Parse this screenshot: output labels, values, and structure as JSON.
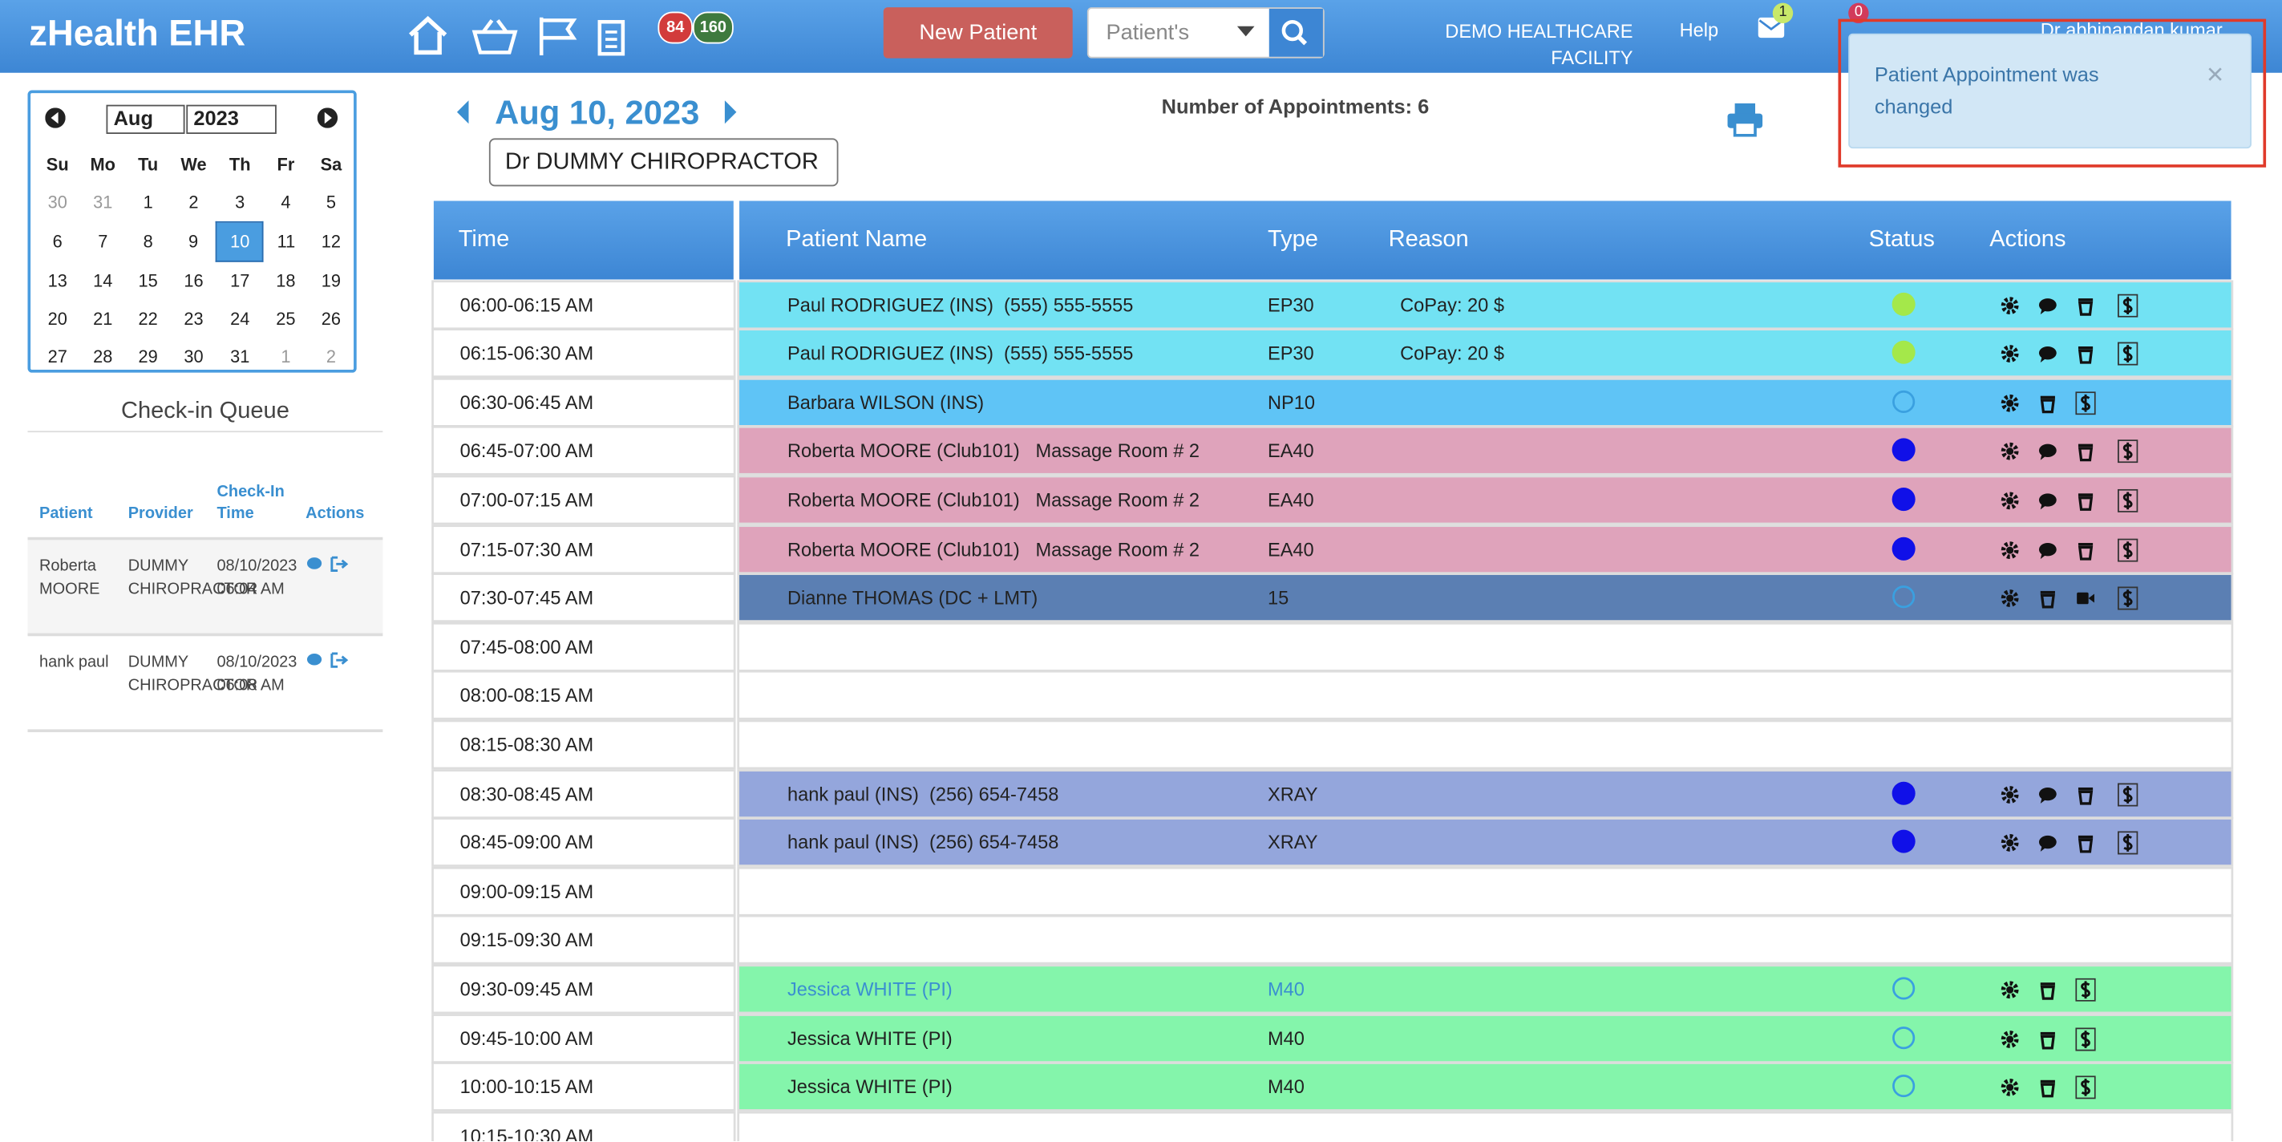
{
  "header": {
    "brand": "zHealth EHR",
    "badge_red": "84",
    "badge_green": "160",
    "new_patient": "New Patient",
    "search_placeholder": "Patient's",
    "facility": "DEMO HEALTHCARE FACILITY",
    "help": "Help",
    "mail_count": "1",
    "alert_count": "0",
    "user": "Dr abhinandan kumar"
  },
  "calendar": {
    "month": "Aug",
    "year": "2023",
    "selected": 10,
    "weekdays": [
      "Su",
      "Mo",
      "Tu",
      "We",
      "Th",
      "Fr",
      "Sa"
    ],
    "weeks": [
      [
        30,
        31,
        1,
        2,
        3,
        4,
        5
      ],
      [
        6,
        7,
        8,
        9,
        10,
        11,
        12
      ],
      [
        13,
        14,
        15,
        16,
        17,
        18,
        19
      ],
      [
        20,
        21,
        22,
        23,
        24,
        25,
        26
      ],
      [
        27,
        28,
        29,
        30,
        31,
        1,
        2
      ]
    ]
  },
  "checkin": {
    "title": "Check-in Queue",
    "columns": [
      "Patient",
      "Provider",
      "Check-In Time",
      "Actions"
    ],
    "rows": [
      [
        "Roberta MOORE",
        "DUMMY CHIROPRACTOR",
        "08/10/2023 06:04 AM"
      ],
      [
        "hank paul",
        "DUMMY CHIROPRACTOR",
        "08/10/2023 06:08 AM"
      ]
    ]
  },
  "schedule": {
    "date": "Aug 10, 2023",
    "provider": "Dr DUMMY CHIROPRACTOR",
    "count_label": "Number of Appointments: 6",
    "columns": [
      "Time",
      "Patient Name",
      "Type",
      "Reason",
      "Status",
      "Actions"
    ],
    "rows": [
      {
        "time": "06:00-06:15 AM",
        "patient": "Paul RODRIGUEZ (INS)  (555) 555-5555",
        "type": "EP30",
        "reason": "CoPay: 20 $",
        "status": "#a4e84a",
        "status_filled": true,
        "color": "#72e2f3",
        "actions": [
          "gear",
          "chat",
          "trash",
          "dollar"
        ]
      },
      {
        "time": "06:15-06:30 AM",
        "patient": "Paul RODRIGUEZ (INS)  (555) 555-5555",
        "type": "EP30",
        "reason": "CoPay: 20 $",
        "status": "#a4e84a",
        "status_filled": true,
        "color": "#72e2f3",
        "actions": [
          "gear",
          "chat",
          "trash",
          "dollar"
        ]
      },
      {
        "time": "06:30-06:45 AM",
        "patient": "Barbara WILSON (INS)",
        "type": "NP10",
        "status": "#3aa0e0",
        "status_filled": false,
        "color": "#5fc4f6",
        "actions": [
          "gear",
          "trash",
          "dollar"
        ]
      },
      {
        "time": "06:45-07:00 AM",
        "patient": "Roberta MOORE (Club101)   Massage Room # 2",
        "type": "EA40",
        "status": "#1010e8",
        "status_filled": true,
        "color": "#dfa3bb",
        "actions": [
          "gear",
          "chat",
          "trash",
          "dollar"
        ]
      },
      {
        "time": "07:00-07:15 AM",
        "patient": "Roberta MOORE (Club101)   Massage Room # 2",
        "type": "EA40",
        "status": "#1010e8",
        "status_filled": true,
        "color": "#dfa3bb",
        "actions": [
          "gear",
          "chat",
          "trash",
          "dollar"
        ]
      },
      {
        "time": "07:15-07:30 AM",
        "patient": "Roberta MOORE (Club101)   Massage Room # 2",
        "type": "EA40",
        "status": "#1010e8",
        "status_filled": true,
        "color": "#dfa3bb",
        "actions": [
          "gear",
          "chat",
          "trash",
          "dollar"
        ]
      },
      {
        "time": "07:30-07:45 AM",
        "patient": "Dianne THOMAS (DC + LMT)",
        "type": "15",
        "status": "#3aa0e0",
        "status_filled": false,
        "color": "#5b7fb3",
        "actions": [
          "gear",
          "trash",
          "video",
          "dollar"
        ]
      },
      {
        "time": "07:45-08:00 AM"
      },
      {
        "time": "08:00-08:15 AM"
      },
      {
        "time": "08:15-08:30 AM"
      },
      {
        "time": "08:30-08:45 AM",
        "patient": "hank paul (INS)  (256) 654-7458",
        "type": "XRAY",
        "status": "#1010e8",
        "status_filled": true,
        "color": "#94a6dc",
        "actions": [
          "gear",
          "chat",
          "trash",
          "dollar"
        ]
      },
      {
        "time": "08:45-09:00 AM",
        "patient": "hank paul (INS)  (256) 654-7458",
        "type": "XRAY",
        "status": "#1010e8",
        "status_filled": true,
        "color": "#94a6dc",
        "actions": [
          "gear",
          "chat",
          "trash",
          "dollar"
        ]
      },
      {
        "time": "09:00-09:15 AM"
      },
      {
        "time": "09:15-09:30 AM"
      },
      {
        "time": "09:30-09:45 AM",
        "patient": "Jessica WHITE (PI)",
        "type": "M40",
        "status": "#3aa0e0",
        "status_filled": false,
        "color": "#84f5ab",
        "text_color": "#3a8fd0",
        "actions": [
          "gear",
          "trash",
          "dollar"
        ]
      },
      {
        "time": "09:45-10:00 AM",
        "patient": "Jessica WHITE (PI)",
        "type": "M40",
        "status": "#3aa0e0",
        "status_filled": false,
        "color": "#84f5ab",
        "actions": [
          "gear",
          "trash",
          "dollar"
        ]
      },
      {
        "time": "10:00-10:15 AM",
        "patient": "Jessica WHITE (PI)",
        "type": "M40",
        "status": "#3aa0e0",
        "status_filled": false,
        "color": "#84f5ab",
        "actions": [
          "gear",
          "trash",
          "dollar"
        ]
      },
      {
        "time": "10:15-10:30 AM"
      }
    ]
  },
  "toast": {
    "message": "Patient Appointment was changed"
  }
}
